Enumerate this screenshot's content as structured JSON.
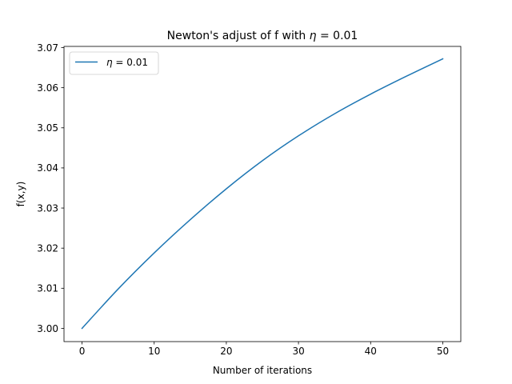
{
  "chart_data": {
    "type": "line",
    "title_prefix": "Newton's adjust of f with ",
    "title_symbol": "η",
    "title_suffix": " =  0.01",
    "xlabel": "Number of iterations",
    "ylabel": "f(x,y)",
    "xlim": [
      -2.5,
      52.5
    ],
    "ylim": [
      2.9967,
      3.0703
    ],
    "xticks": [
      0,
      10,
      20,
      30,
      40,
      50
    ],
    "yticks": [
      3.0,
      3.01,
      3.02,
      3.03,
      3.04,
      3.05,
      3.06,
      3.07
    ],
    "ytick_labels": [
      "3.00",
      "3.01",
      "3.02",
      "3.03",
      "3.04",
      "3.05",
      "3.06",
      "3.07"
    ],
    "legend_position": "upper-left",
    "grid": false,
    "series": [
      {
        "name_symbol": "η",
        "name_suffix": " = 0.01",
        "color": "#1f77b4",
        "x": [
          0,
          5,
          10,
          15,
          20,
          25,
          30,
          35,
          40,
          45,
          50
        ],
        "y": [
          3.0,
          3.0098,
          3.0188,
          3.0271,
          3.0348,
          3.0418,
          3.048,
          3.0535,
          3.0584,
          3.0629,
          3.0672
        ]
      }
    ]
  }
}
